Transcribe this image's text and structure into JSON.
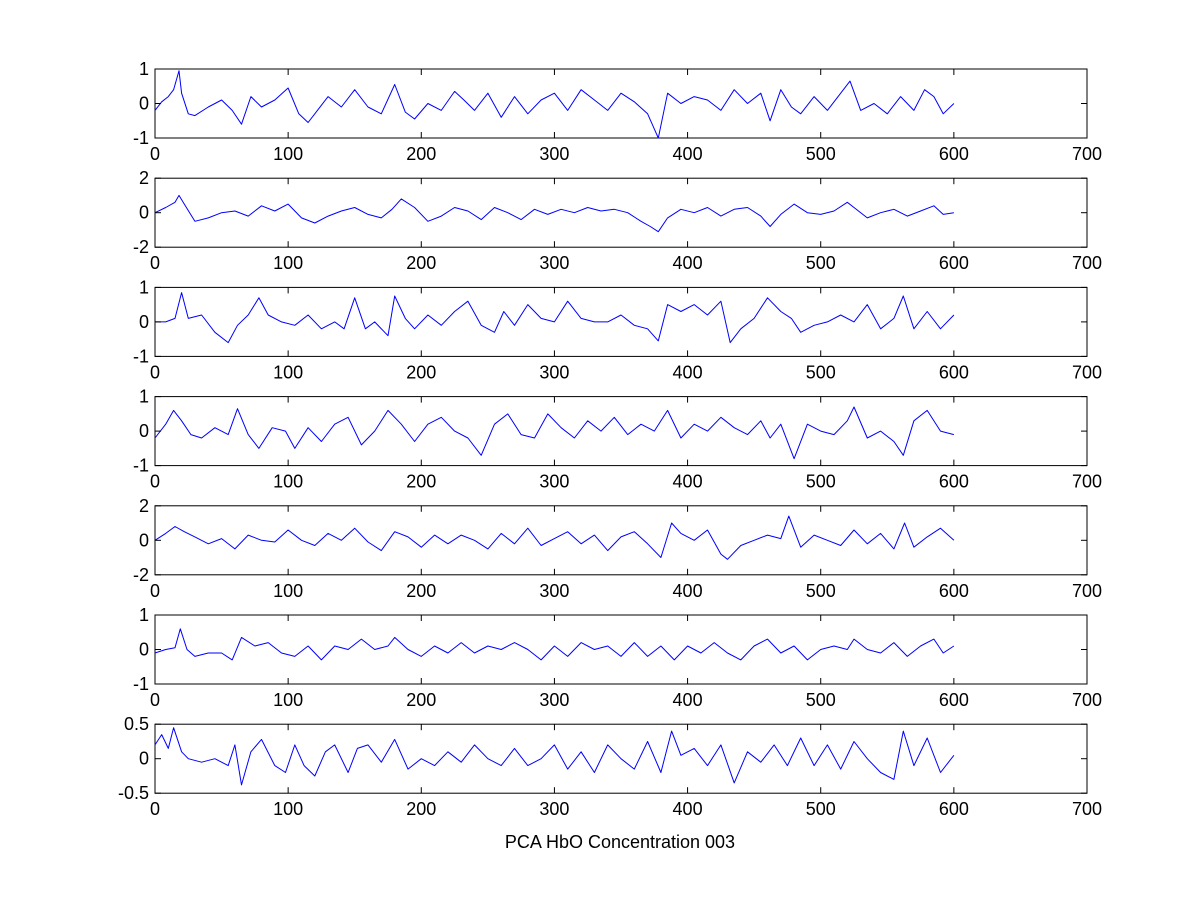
{
  "figure": {
    "xlabel": "PCA HbO Concentration 003",
    "line_color": "#0000ff"
  },
  "chart_data": [
    {
      "type": "line",
      "xlim": [
        0,
        700
      ],
      "ylim": [
        -1,
        1
      ],
      "xticks": [
        0,
        100,
        200,
        300,
        400,
        500,
        600,
        700
      ],
      "yticks": [
        -1,
        0,
        1
      ],
      "ytick_labels": [
        "-1",
        "0",
        "1"
      ],
      "grid": false,
      "series": [
        {
          "x": [
            0,
            5,
            10,
            14,
            18,
            20,
            25,
            30,
            40,
            50,
            58,
            65,
            72,
            80,
            90,
            100,
            108,
            115,
            122,
            130,
            140,
            150,
            160,
            170,
            180,
            188,
            195,
            205,
            215,
            225,
            232,
            240,
            250,
            260,
            270,
            280,
            290,
            300,
            310,
            320,
            330,
            340,
            350,
            360,
            370,
            378,
            385,
            395,
            405,
            415,
            425,
            435,
            445,
            455,
            462,
            470,
            478,
            485,
            495,
            505,
            515,
            522,
            530,
            540,
            550,
            560,
            570,
            578,
            585,
            592,
            600
          ],
          "values": [
            -0.2,
            0.05,
            0.2,
            0.4,
            0.95,
            0.3,
            -0.3,
            -0.35,
            -0.1,
            0.1,
            -0.2,
            -0.6,
            0.2,
            -0.1,
            0.1,
            0.45,
            -0.3,
            -0.55,
            -0.2,
            0.2,
            -0.1,
            0.4,
            -0.1,
            -0.3,
            0.55,
            -0.25,
            -0.45,
            0.0,
            -0.2,
            0.35,
            0.1,
            -0.2,
            0.3,
            -0.4,
            0.2,
            -0.3,
            0.1,
            0.3,
            -0.2,
            0.4,
            0.1,
            -0.2,
            0.3,
            0.05,
            -0.3,
            -1.0,
            0.3,
            0.0,
            0.2,
            0.1,
            -0.2,
            0.4,
            0.0,
            0.3,
            -0.5,
            0.4,
            -0.1,
            -0.3,
            0.2,
            -0.2,
            0.3,
            0.65,
            -0.2,
            0.0,
            -0.3,
            0.2,
            -0.2,
            0.4,
            0.2,
            -0.3,
            0.0
          ]
        }
      ]
    },
    {
      "type": "line",
      "xlim": [
        0,
        700
      ],
      "ylim": [
        -2,
        2
      ],
      "xticks": [
        0,
        100,
        200,
        300,
        400,
        500,
        600,
        700
      ],
      "yticks": [
        -2,
        0,
        2
      ],
      "ytick_labels": [
        "-2",
        "0",
        "2"
      ],
      "grid": false,
      "series": [
        {
          "x": [
            0,
            8,
            15,
            18,
            22,
            30,
            40,
            50,
            60,
            70,
            80,
            90,
            100,
            110,
            120,
            130,
            140,
            150,
            160,
            170,
            178,
            185,
            195,
            205,
            215,
            225,
            235,
            245,
            255,
            265,
            275,
            285,
            295,
            305,
            315,
            325,
            335,
            345,
            355,
            365,
            372,
            378,
            385,
            395,
            405,
            415,
            425,
            435,
            445,
            455,
            462,
            470,
            480,
            490,
            500,
            510,
            520,
            525,
            535,
            545,
            555,
            565,
            575,
            585,
            592,
            600
          ],
          "values": [
            0.0,
            0.3,
            0.6,
            1.0,
            0.5,
            -0.5,
            -0.3,
            0.0,
            0.1,
            -0.2,
            0.4,
            0.1,
            0.5,
            -0.3,
            -0.6,
            -0.2,
            0.1,
            0.3,
            -0.1,
            -0.3,
            0.2,
            0.8,
            0.3,
            -0.5,
            -0.2,
            0.3,
            0.1,
            -0.4,
            0.3,
            0.0,
            -0.4,
            0.2,
            -0.1,
            0.2,
            0.0,
            0.3,
            0.1,
            0.2,
            0.0,
            -0.5,
            -0.8,
            -1.1,
            -0.3,
            0.2,
            0.0,
            0.3,
            -0.2,
            0.2,
            0.3,
            -0.2,
            -0.8,
            -0.1,
            0.5,
            0.0,
            -0.1,
            0.1,
            0.6,
            0.3,
            -0.3,
            0.0,
            0.2,
            -0.2,
            0.1,
            0.4,
            -0.1,
            0.0
          ]
        }
      ]
    },
    {
      "type": "line",
      "xlim": [
        0,
        700
      ],
      "ylim": [
        -1,
        1
      ],
      "xticks": [
        0,
        100,
        200,
        300,
        400,
        500,
        600,
        700
      ],
      "yticks": [
        -1,
        0,
        1
      ],
      "ytick_labels": [
        "-1",
        "0",
        "1"
      ],
      "grid": false,
      "series": [
        {
          "x": [
            0,
            8,
            15,
            20,
            25,
            35,
            45,
            55,
            62,
            70,
            78,
            85,
            95,
            105,
            115,
            125,
            135,
            142,
            150,
            158,
            165,
            175,
            180,
            188,
            195,
            205,
            215,
            225,
            235,
            245,
            255,
            262,
            270,
            280,
            290,
            300,
            310,
            320,
            330,
            340,
            350,
            360,
            370,
            378,
            385,
            395,
            405,
            415,
            425,
            432,
            440,
            450,
            460,
            470,
            478,
            485,
            495,
            505,
            515,
            525,
            535,
            545,
            555,
            562,
            570,
            580,
            590,
            600
          ],
          "values": [
            0.0,
            0.0,
            0.1,
            0.85,
            0.1,
            0.2,
            -0.3,
            -0.6,
            -0.1,
            0.2,
            0.7,
            0.2,
            0.0,
            -0.1,
            0.2,
            -0.2,
            0.0,
            -0.2,
            0.7,
            -0.2,
            0.0,
            -0.4,
            0.75,
            0.1,
            -0.2,
            0.2,
            -0.1,
            0.3,
            0.6,
            -0.1,
            -0.3,
            0.3,
            -0.1,
            0.5,
            0.1,
            0.0,
            0.6,
            0.1,
            0.0,
            0.0,
            0.2,
            -0.1,
            -0.2,
            -0.55,
            0.5,
            0.3,
            0.5,
            0.2,
            0.6,
            -0.6,
            -0.2,
            0.1,
            0.7,
            0.3,
            0.1,
            -0.3,
            -0.1,
            0.0,
            0.2,
            0.0,
            0.5,
            -0.2,
            0.1,
            0.75,
            -0.2,
            0.3,
            -0.2,
            0.2
          ]
        }
      ]
    },
    {
      "type": "line",
      "xlim": [
        0,
        700
      ],
      "ylim": [
        -1,
        1
      ],
      "xticks": [
        0,
        100,
        200,
        300,
        400,
        500,
        600,
        700
      ],
      "yticks": [
        -1,
        0,
        1
      ],
      "ytick_labels": [
        "-1",
        "0",
        "1"
      ],
      "grid": false,
      "series": [
        {
          "x": [
            0,
            8,
            14,
            20,
            27,
            35,
            45,
            55,
            62,
            70,
            78,
            88,
            98,
            105,
            115,
            125,
            135,
            145,
            155,
            165,
            175,
            185,
            195,
            205,
            215,
            225,
            235,
            245,
            255,
            265,
            275,
            285,
            295,
            305,
            315,
            325,
            335,
            345,
            355,
            365,
            375,
            385,
            395,
            405,
            415,
            425,
            435,
            445,
            455,
            462,
            470,
            480,
            490,
            500,
            510,
            520,
            525,
            535,
            545,
            555,
            562,
            570,
            580,
            590,
            600
          ],
          "values": [
            -0.2,
            0.2,
            0.6,
            0.3,
            -0.1,
            -0.2,
            0.1,
            -0.1,
            0.65,
            -0.1,
            -0.5,
            0.1,
            0.0,
            -0.5,
            0.1,
            -0.3,
            0.2,
            0.4,
            -0.4,
            0.0,
            0.6,
            0.2,
            -0.3,
            0.2,
            0.4,
            0.0,
            -0.2,
            -0.7,
            0.2,
            0.5,
            -0.1,
            -0.2,
            0.5,
            0.1,
            -0.2,
            0.3,
            0.0,
            0.4,
            -0.1,
            0.2,
            0.0,
            0.6,
            -0.2,
            0.2,
            0.0,
            0.4,
            0.1,
            -0.1,
            0.3,
            -0.2,
            0.2,
            -0.8,
            0.2,
            0.0,
            -0.1,
            0.3,
            0.7,
            -0.2,
            0.0,
            -0.3,
            -0.7,
            0.3,
            0.6,
            0.0,
            -0.1
          ]
        }
      ]
    },
    {
      "type": "line",
      "xlim": [
        0,
        700
      ],
      "ylim": [
        -2,
        2
      ],
      "xticks": [
        0,
        100,
        200,
        300,
        400,
        500,
        600,
        700
      ],
      "yticks": [
        -2,
        0,
        2
      ],
      "ytick_labels": [
        "-2",
        "0",
        "2"
      ],
      "grid": false,
      "series": [
        {
          "x": [
            0,
            8,
            15,
            22,
            30,
            40,
            50,
            60,
            70,
            80,
            90,
            100,
            110,
            120,
            130,
            140,
            150,
            160,
            170,
            180,
            190,
            200,
            210,
            220,
            230,
            240,
            250,
            260,
            270,
            280,
            290,
            300,
            310,
            320,
            330,
            340,
            350,
            360,
            370,
            380,
            388,
            395,
            405,
            415,
            425,
            430,
            440,
            450,
            460,
            470,
            476,
            485,
            495,
            505,
            515,
            525,
            535,
            545,
            555,
            563,
            570,
            580,
            590,
            600
          ],
          "values": [
            0.0,
            0.4,
            0.8,
            0.5,
            0.2,
            -0.2,
            0.1,
            -0.5,
            0.3,
            0.0,
            -0.1,
            0.6,
            0.0,
            -0.3,
            0.4,
            0.0,
            0.7,
            -0.1,
            -0.6,
            0.5,
            0.2,
            -0.4,
            0.3,
            -0.2,
            0.3,
            0.0,
            -0.5,
            0.4,
            -0.2,
            0.7,
            -0.3,
            0.1,
            0.5,
            -0.2,
            0.3,
            -0.6,
            0.2,
            0.5,
            -0.2,
            -1.0,
            1.0,
            0.4,
            0.0,
            0.6,
            -0.8,
            -1.1,
            -0.3,
            0.0,
            0.3,
            0.1,
            1.4,
            -0.4,
            0.3,
            0.0,
            -0.3,
            0.6,
            -0.2,
            0.4,
            -0.5,
            1.0,
            -0.4,
            0.2,
            0.7,
            0.0
          ]
        }
      ]
    },
    {
      "type": "line",
      "xlim": [
        0,
        700
      ],
      "ylim": [
        -1,
        1
      ],
      "xticks": [
        0,
        100,
        200,
        300,
        400,
        500,
        600,
        700
      ],
      "yticks": [
        -1,
        0,
        1
      ],
      "ytick_labels": [
        "-1",
        "0",
        "1"
      ],
      "grid": false,
      "series": [
        {
          "x": [
            0,
            8,
            15,
            19,
            24,
            30,
            40,
            50,
            58,
            65,
            75,
            85,
            95,
            105,
            115,
            125,
            135,
            145,
            155,
            165,
            175,
            180,
            190,
            200,
            210,
            220,
            230,
            240,
            250,
            260,
            270,
            280,
            290,
            300,
            310,
            320,
            330,
            340,
            350,
            360,
            370,
            380,
            390,
            400,
            410,
            420,
            430,
            440,
            450,
            460,
            470,
            480,
            490,
            500,
            510,
            520,
            525,
            535,
            545,
            555,
            565,
            575,
            585,
            592,
            600
          ],
          "values": [
            -0.1,
            0.0,
            0.05,
            0.6,
            0.0,
            -0.2,
            -0.1,
            -0.1,
            -0.3,
            0.35,
            0.1,
            0.2,
            -0.1,
            -0.2,
            0.1,
            -0.3,
            0.1,
            0.0,
            0.3,
            0.0,
            0.1,
            0.35,
            0.0,
            -0.2,
            0.1,
            -0.1,
            0.2,
            -0.1,
            0.1,
            0.0,
            0.2,
            0.0,
            -0.3,
            0.1,
            -0.2,
            0.2,
            0.0,
            0.1,
            -0.2,
            0.2,
            -0.2,
            0.1,
            -0.3,
            0.1,
            -0.1,
            0.2,
            -0.1,
            -0.3,
            0.1,
            0.3,
            -0.1,
            0.1,
            -0.3,
            0.0,
            0.1,
            0.0,
            0.3,
            0.0,
            -0.1,
            0.2,
            -0.2,
            0.1,
            0.3,
            -0.1,
            0.1
          ]
        }
      ]
    },
    {
      "type": "line",
      "xlim": [
        0,
        700
      ],
      "ylim": [
        -0.5,
        0.5
      ],
      "xticks": [
        0,
        100,
        200,
        300,
        400,
        500,
        600,
        700
      ],
      "yticks": [
        -0.5,
        0,
        0.5
      ],
      "ytick_labels": [
        "-0.5",
        "0",
        "0.5"
      ],
      "grid": false,
      "series": [
        {
          "x": [
            0,
            5,
            10,
            14,
            20,
            25,
            35,
            45,
            55,
            60,
            65,
            72,
            80,
            90,
            98,
            105,
            112,
            120,
            128,
            135,
            145,
            152,
            160,
            170,
            180,
            190,
            200,
            210,
            220,
            230,
            240,
            250,
            260,
            270,
            280,
            290,
            300,
            310,
            320,
            330,
            340,
            350,
            360,
            370,
            380,
            388,
            395,
            405,
            415,
            425,
            435,
            445,
            455,
            465,
            475,
            485,
            495,
            505,
            515,
            525,
            535,
            545,
            555,
            562,
            570,
            580,
            590,
            600
          ],
          "values": [
            0.2,
            0.35,
            0.15,
            0.45,
            0.1,
            0.0,
            -0.05,
            0.0,
            -0.1,
            0.2,
            -0.38,
            0.1,
            0.28,
            -0.1,
            -0.2,
            0.2,
            -0.1,
            -0.25,
            0.1,
            0.2,
            -0.2,
            0.15,
            0.2,
            -0.05,
            0.28,
            -0.15,
            0.0,
            -0.1,
            0.1,
            -0.05,
            0.2,
            0.0,
            -0.1,
            0.15,
            -0.1,
            0.0,
            0.2,
            -0.15,
            0.1,
            -0.2,
            0.2,
            0.0,
            -0.15,
            0.25,
            -0.2,
            0.4,
            0.05,
            0.15,
            -0.1,
            0.2,
            -0.35,
            0.1,
            -0.05,
            0.2,
            -0.1,
            0.3,
            -0.1,
            0.2,
            -0.15,
            0.25,
            0.0,
            -0.2,
            -0.3,
            0.4,
            -0.1,
            0.3,
            -0.2,
            0.05
          ]
        }
      ]
    }
  ]
}
